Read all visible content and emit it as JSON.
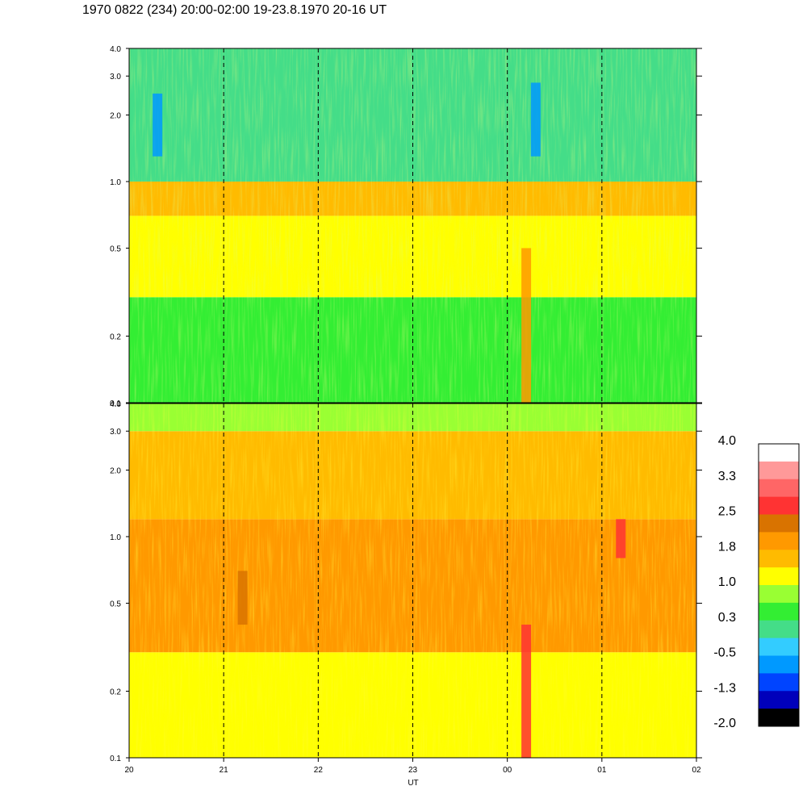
{
  "title": "1970 0822 (234) 20:00-02:00 19-23.8.1970  20-16 UT",
  "chart_data": [
    {
      "type": "heatmap",
      "panel": "upper",
      "x_unit": "UT hour",
      "x_range": [
        20,
        26
      ],
      "x_ticks": [
        20,
        21,
        22,
        23,
        24,
        25,
        26
      ],
      "dashed_gridlines_x": [
        21,
        22,
        23,
        24,
        25
      ],
      "y_scale": "log",
      "y_range": [
        0.1,
        4.0
      ],
      "y_ticks": [
        0.1,
        0.2,
        0.5,
        1.0,
        2.0,
        3.0,
        4.0
      ],
      "y_tick_labels": [
        "0.1",
        "0.2",
        "0.5",
        "1.0",
        "2.0",
        "3.0",
        "4.0"
      ],
      "dominant_levels": [
        {
          "y_range": [
            0.1,
            0.3
          ],
          "value": 0.5
        },
        {
          "y_range": [
            0.3,
            0.7
          ],
          "value": 1.1
        },
        {
          "y_range": [
            0.7,
            1.0
          ],
          "value": 1.6
        },
        {
          "y_range": [
            1.0,
            4.0
          ],
          "value": 0.2
        }
      ],
      "features": [
        {
          "x": 24.2,
          "y_range": [
            0.1,
            0.5
          ],
          "value": 1.9
        },
        {
          "x": 20.3,
          "y_range": [
            1.3,
            2.5
          ],
          "value": -0.5
        },
        {
          "x": 24.3,
          "y_range": [
            1.3,
            2.8
          ],
          "value": -0.6
        }
      ]
    },
    {
      "type": "heatmap",
      "panel": "lower",
      "x_unit": "UT hour",
      "x_range": [
        20,
        26
      ],
      "x_ticks": [
        20,
        21,
        22,
        23,
        24,
        25,
        26
      ],
      "dashed_gridlines_x": [
        21,
        22,
        23,
        24,
        25
      ],
      "y_scale": "log",
      "y_range": [
        0.1,
        4.0
      ],
      "y_ticks": [
        0.1,
        0.2,
        0.5,
        1.0,
        2.0,
        3.0,
        4.0
      ],
      "y_tick_labels": [
        "0.1",
        "0.2",
        "0.5",
        "1.0",
        "2.0",
        "3.0",
        "4.0"
      ],
      "dominant_levels": [
        {
          "y_range": [
            0.1,
            0.3
          ],
          "value": 1.3
        },
        {
          "y_range": [
            0.3,
            1.2
          ],
          "value": 1.9
        },
        {
          "y_range": [
            1.2,
            3.0
          ],
          "value": 1.4
        },
        {
          "y_range": [
            3.0,
            4.0
          ],
          "value": 0.9
        }
      ],
      "features": [
        {
          "x": 24.2,
          "y_range": [
            0.1,
            0.4
          ],
          "value": 2.7
        },
        {
          "x": 25.2,
          "y_range": [
            0.8,
            1.2
          ],
          "value": 2.6
        },
        {
          "x": 21.2,
          "y_range": [
            0.4,
            0.7
          ],
          "value": 2.2
        }
      ]
    }
  ],
  "x_tick_labels": [
    "20",
    "21",
    "22",
    "23",
    "00",
    "01",
    "02"
  ],
  "x_axis_label": "UT",
  "colorbar": {
    "labels": [
      "4.0",
      "3.3",
      "2.5",
      "1.8",
      "1.0",
      "0.3",
      "-0.5",
      "-1.3",
      "-2.0"
    ],
    "range": [
      -2.0,
      4.0
    ],
    "colors_top_to_bottom": [
      "#ffffff",
      "#ff9999",
      "#ff6666",
      "#ff3333",
      "#d97300",
      "#ff9900",
      "#ffbb00",
      "#ffff00",
      "#99ff33",
      "#33ee33",
      "#44dd88",
      "#33ccff",
      "#0099ff",
      "#0044ff",
      "#0000bb",
      "#000000"
    ]
  }
}
